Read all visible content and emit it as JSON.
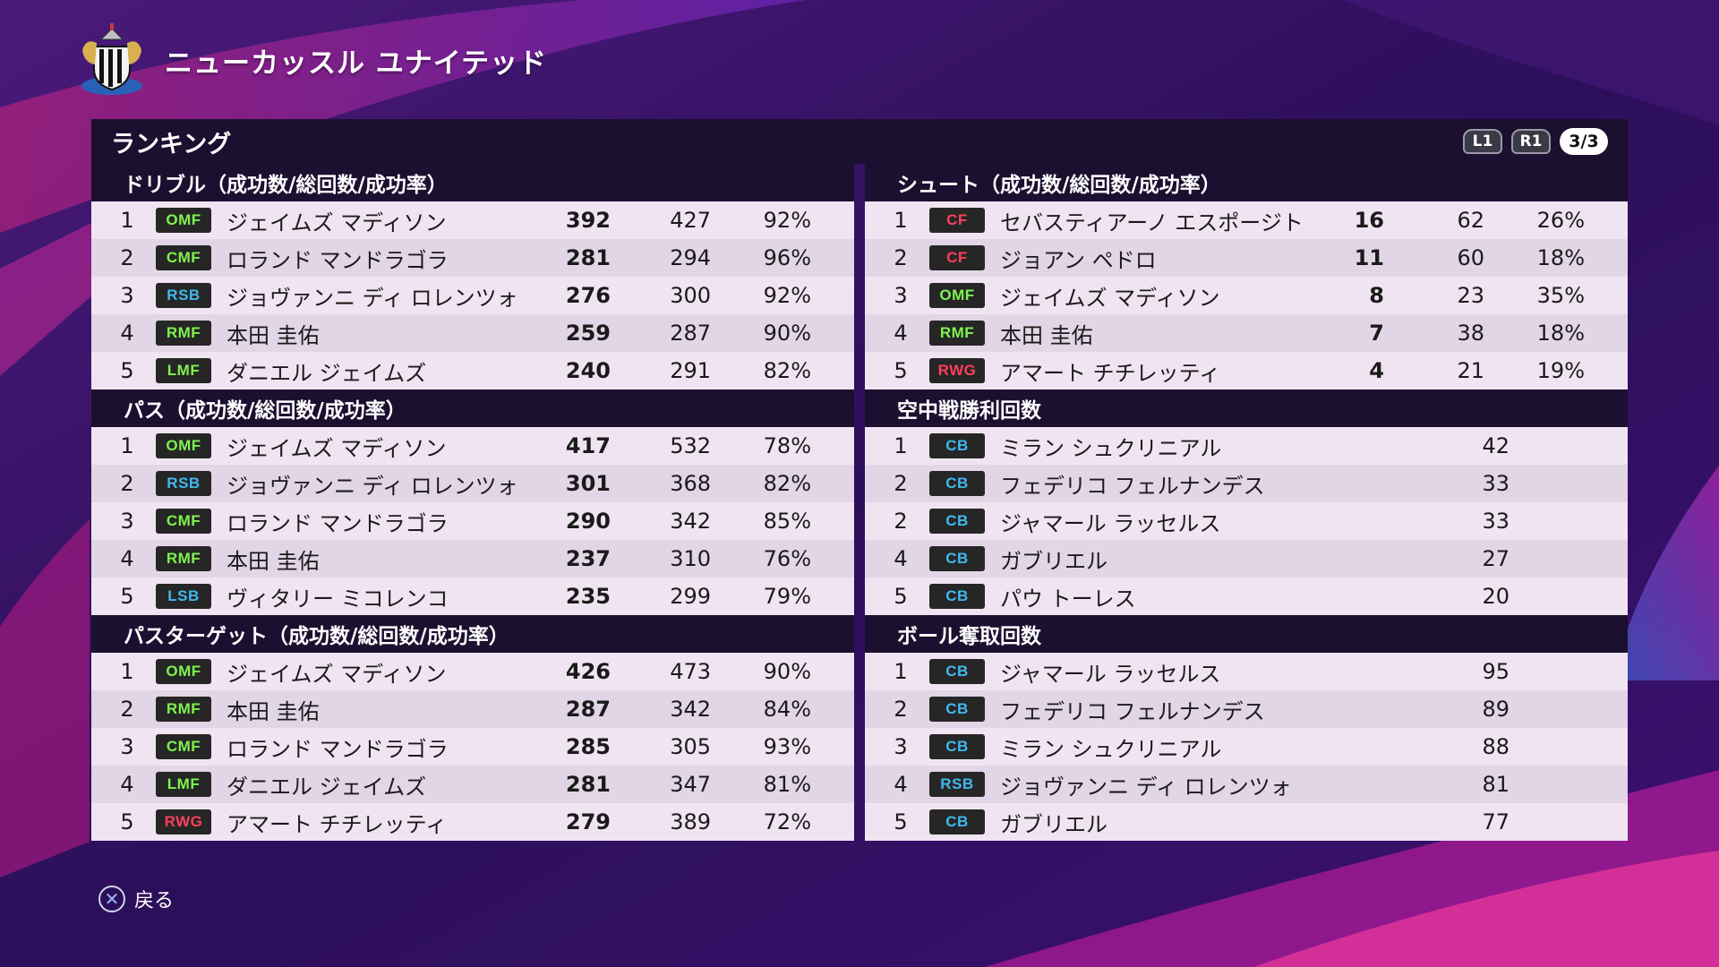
{
  "header": {
    "club_name": "ニューカッスル ユナイテッド"
  },
  "panel": {
    "title": "ランキング",
    "l1": "L1",
    "r1": "R1",
    "page": "3/3"
  },
  "sections_left": [
    {
      "title": "ドリブル（成功数/総回数/成功率）",
      "rows": [
        {
          "rank": "1",
          "pos": "OMF",
          "name": "ジェイムズ マディソン",
          "v1": "392",
          "v2": "427",
          "v3": "92%"
        },
        {
          "rank": "2",
          "pos": "CMF",
          "name": "ロランド マンドラゴラ",
          "v1": "281",
          "v2": "294",
          "v3": "96%"
        },
        {
          "rank": "3",
          "pos": "RSB",
          "name": "ジョヴァンニ ディ ロレンツォ",
          "v1": "276",
          "v2": "300",
          "v3": "92%"
        },
        {
          "rank": "4",
          "pos": "RMF",
          "name": "本田 圭佑",
          "v1": "259",
          "v2": "287",
          "v3": "90%"
        },
        {
          "rank": "5",
          "pos": "LMF",
          "name": "ダニエル ジェイムズ",
          "v1": "240",
          "v2": "291",
          "v3": "82%"
        }
      ]
    },
    {
      "title": "パス（成功数/総回数/成功率）",
      "rows": [
        {
          "rank": "1",
          "pos": "OMF",
          "name": "ジェイムズ マディソン",
          "v1": "417",
          "v2": "532",
          "v3": "78%"
        },
        {
          "rank": "2",
          "pos": "RSB",
          "name": "ジョヴァンニ ディ ロレンツォ",
          "v1": "301",
          "v2": "368",
          "v3": "82%"
        },
        {
          "rank": "3",
          "pos": "CMF",
          "name": "ロランド マンドラゴラ",
          "v1": "290",
          "v2": "342",
          "v3": "85%"
        },
        {
          "rank": "4",
          "pos": "RMF",
          "name": "本田 圭佑",
          "v1": "237",
          "v2": "310",
          "v3": "76%"
        },
        {
          "rank": "5",
          "pos": "LSB",
          "name": "ヴィタリー ミコレンコ",
          "v1": "235",
          "v2": "299",
          "v3": "79%"
        }
      ]
    },
    {
      "title": "パスターゲット（成功数/総回数/成功率）",
      "rows": [
        {
          "rank": "1",
          "pos": "OMF",
          "name": "ジェイムズ マディソン",
          "v1": "426",
          "v2": "473",
          "v3": "90%"
        },
        {
          "rank": "2",
          "pos": "RMF",
          "name": "本田 圭佑",
          "v1": "287",
          "v2": "342",
          "v3": "84%"
        },
        {
          "rank": "3",
          "pos": "CMF",
          "name": "ロランド マンドラゴラ",
          "v1": "285",
          "v2": "305",
          "v3": "93%"
        },
        {
          "rank": "4",
          "pos": "LMF",
          "name": "ダニエル ジェイムズ",
          "v1": "281",
          "v2": "347",
          "v3": "81%"
        },
        {
          "rank": "5",
          "pos": "RWG",
          "name": "アマート チチレッティ",
          "v1": "279",
          "v2": "389",
          "v3": "72%"
        }
      ]
    }
  ],
  "sections_right": [
    {
      "title": "シュート（成功数/総回数/成功率）",
      "rows": [
        {
          "rank": "1",
          "pos": "CF",
          "name": "セバスティアーノ エスポージト",
          "v1": "16",
          "v2": "62",
          "v3": "26%"
        },
        {
          "rank": "2",
          "pos": "CF",
          "name": "ジョアン ペドロ",
          "v1": "11",
          "v2": "60",
          "v3": "18%"
        },
        {
          "rank": "3",
          "pos": "OMF",
          "name": "ジェイムズ マディソン",
          "v1": "8",
          "v2": "23",
          "v3": "35%"
        },
        {
          "rank": "4",
          "pos": "RMF",
          "name": "本田 圭佑",
          "v1": "7",
          "v2": "38",
          "v3": "18%"
        },
        {
          "rank": "5",
          "pos": "RWG",
          "name": "アマート チチレッティ",
          "v1": "4",
          "v2": "21",
          "v3": "19%"
        }
      ]
    },
    {
      "title": "空中戦勝利回数",
      "rows": [
        {
          "rank": "1",
          "pos": "CB",
          "name": "ミラン シュクリニアル",
          "v1": "42"
        },
        {
          "rank": "2",
          "pos": "CB",
          "name": "フェデリコ フェルナンデス",
          "v1": "33"
        },
        {
          "rank": "2",
          "pos": "CB",
          "name": "ジャマール ラッセルス",
          "v1": "33"
        },
        {
          "rank": "4",
          "pos": "CB",
          "name": "ガブリエル",
          "v1": "27"
        },
        {
          "rank": "5",
          "pos": "CB",
          "name": "パウ トーレス",
          "v1": "20"
        }
      ]
    },
    {
      "title": "ボール奪取回数",
      "rows": [
        {
          "rank": "1",
          "pos": "CB",
          "name": "ジャマール ラッセルス",
          "v1": "95"
        },
        {
          "rank": "2",
          "pos": "CB",
          "name": "フェデリコ フェルナンデス",
          "v1": "89"
        },
        {
          "rank": "3",
          "pos": "CB",
          "name": "ミラン シュクリニアル",
          "v1": "88"
        },
        {
          "rank": "4",
          "pos": "RSB",
          "name": "ジョヴァンニ ディ ロレンツォ",
          "v1": "81"
        },
        {
          "rank": "5",
          "pos": "CB",
          "name": "ガブリエル",
          "v1": "77"
        }
      ]
    }
  ],
  "footer": {
    "back_label": "戻る"
  },
  "colors": {
    "mid": "#7ef24e",
    "def": "#3fb9ee",
    "fwd": "#ff3f5c",
    "panel": "#1c1030"
  }
}
